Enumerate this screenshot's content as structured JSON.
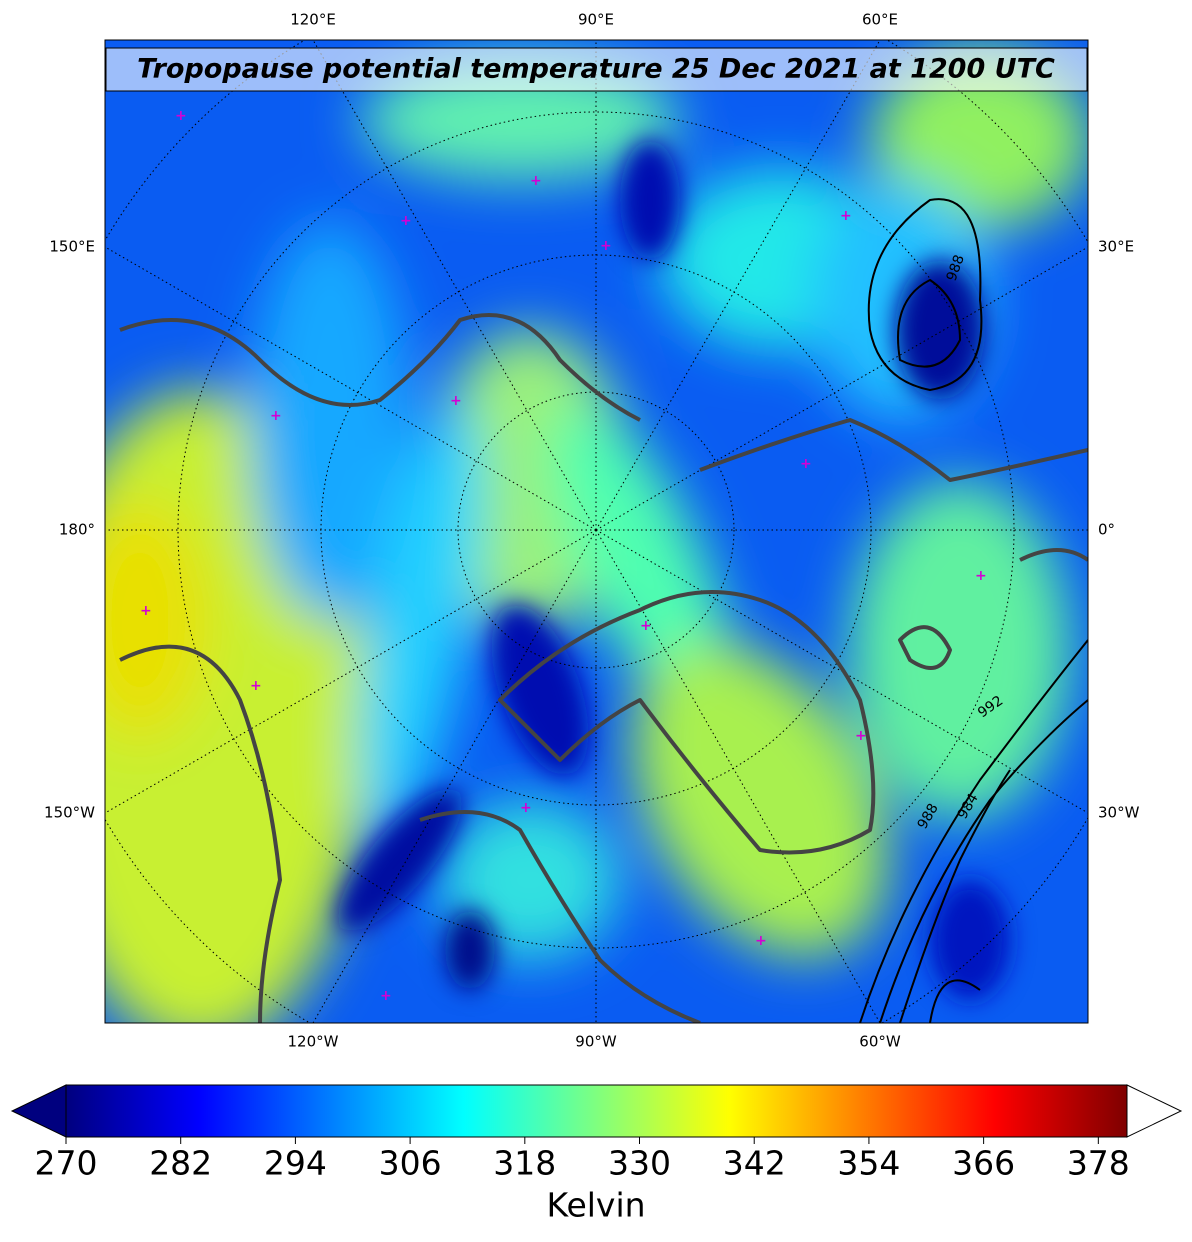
{
  "map": {
    "title": "Tropopause potential temperature 25 Dec 2021 at 1200 UTC",
    "top_labels": [
      "120°E",
      "90°E",
      "60°E"
    ],
    "bottom_labels": [
      "120°W",
      "90°W",
      "60°W"
    ],
    "left_labels": [
      "150°E",
      "180°",
      "150°W"
    ],
    "right_labels": [
      "30°E",
      "0°",
      "30°W"
    ],
    "contour_labels": [
      "988",
      "992",
      "988",
      "984"
    ]
  },
  "colorbar": {
    "label": "Kelvin",
    "range": [
      270,
      381
    ],
    "ticks": [
      270,
      282,
      294,
      306,
      318,
      330,
      342,
      354,
      366,
      378
    ],
    "colormap": [
      "#00007f",
      "#0000ff",
      "#007fff",
      "#00ffff",
      "#7fff7f",
      "#ffff00",
      "#ff7f00",
      "#ff0000",
      "#7f0000"
    ]
  }
}
